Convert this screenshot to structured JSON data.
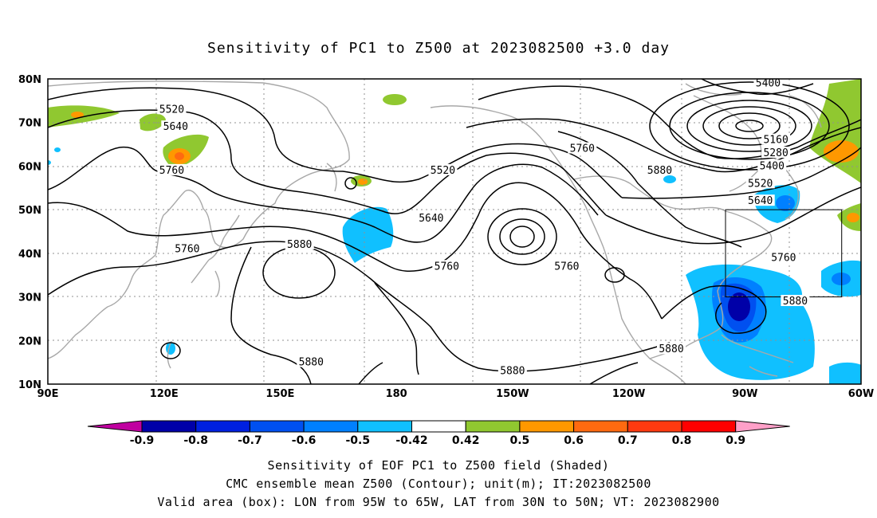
{
  "title": "Sensitivity of PC1 to Z500 at 2023082500 +3.0 day",
  "map": {
    "extent": {
      "lon_min": 90,
      "lon_max": 300,
      "lat_min": 10,
      "lat_max": 80
    },
    "lon_ticks": [
      "90E",
      "120E",
      "150E",
      "180",
      "150W",
      "120W",
      "90W",
      "60W"
    ],
    "lat_ticks": [
      "80N",
      "70N",
      "60N",
      "50N",
      "40N",
      "30N",
      "20N",
      "10N"
    ],
    "grid": "dotted",
    "valid_box": {
      "lon_w": 265,
      "lon_e": 295,
      "lat_s": 30,
      "lat_n": 50
    },
    "contour_labels": [
      {
        "text": "5400",
        "lon": 276,
        "lat": 79
      },
      {
        "text": "5520",
        "lon": 122,
        "lat": 73
      },
      {
        "text": "5640",
        "lon": 123,
        "lat": 69
      },
      {
        "text": "5760",
        "lon": 122,
        "lat": 59
      },
      {
        "text": "5520",
        "lon": 192,
        "lat": 59
      },
      {
        "text": "5760",
        "lon": 228,
        "lat": 64
      },
      {
        "text": "5880",
        "lon": 248,
        "lat": 59
      },
      {
        "text": "5160",
        "lon": 278,
        "lat": 66
      },
      {
        "text": "5280",
        "lon": 278,
        "lat": 63
      },
      {
        "text": "5400",
        "lon": 277,
        "lat": 60
      },
      {
        "text": "5520",
        "lon": 274,
        "lat": 56
      },
      {
        "text": "5640",
        "lon": 274,
        "lat": 52
      },
      {
        "text": "5640",
        "lon": 189,
        "lat": 48
      },
      {
        "text": "5760",
        "lon": 126,
        "lat": 41
      },
      {
        "text": "5880",
        "lon": 155,
        "lat": 42
      },
      {
        "text": "5760",
        "lon": 193,
        "lat": 37
      },
      {
        "text": "5760",
        "lon": 224,
        "lat": 37
      },
      {
        "text": "5760",
        "lon": 280,
        "lat": 39
      },
      {
        "text": "5880",
        "lon": 283,
        "lat": 29
      },
      {
        "text": "5880",
        "lon": 251,
        "lat": 18
      },
      {
        "text": "5880",
        "lon": 158,
        "lat": 15
      },
      {
        "text": "5880",
        "lon": 210,
        "lat": 13
      }
    ]
  },
  "colorbar": {
    "labels": [
      "-0.9",
      "-0.8",
      "-0.7",
      "-0.6",
      "-0.5",
      "-0.42",
      "0.42",
      "0.5",
      "0.6",
      "0.7",
      "0.8",
      "0.9"
    ],
    "colors": [
      "#0000a8",
      "#0020e0",
      "#0050f0",
      "#0080ff",
      "#10c0ff",
      "#ffffff",
      "#90c830",
      "#ff9800",
      "#ff6a10",
      "#ff3a10",
      "#ff0000"
    ],
    "left_tip": "#c000a0",
    "right_tip": "#ffa0c8"
  },
  "captions": [
    "Sensitivity of EOF PC1 to Z500 field (Shaded)",
    "CMC ensemble mean Z500 (Contour); unit(m); IT:2023082500",
    "Valid area (box): LON from 95W to 65W, LAT from 30N to 50N; VT: 2023082900"
  ]
}
